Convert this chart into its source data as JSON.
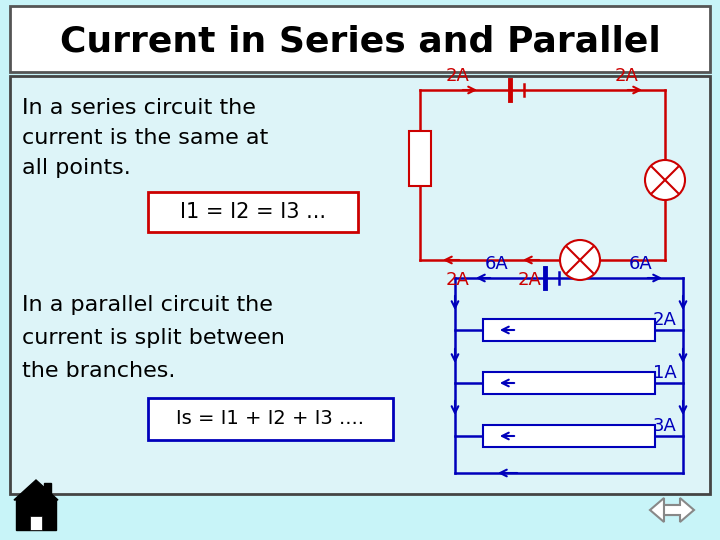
{
  "title": "Current in Series and Parallel",
  "bg_outer": "#c8f4f8",
  "bg_inner": "#ddf4f8",
  "title_bg": "#ffffff",
  "border_color": "#333333",
  "red_color": "#cc0000",
  "blue_color": "#0000bb",
  "text_color": "#000000",
  "series_text1": "In a series circuit the",
  "series_text2": "current is the same at",
  "series_text3": "all points.",
  "series_formula": "I1 = I2 = I3 ...",
  "parallel_text1": "In a parallel circuit the",
  "parallel_text2": "current is split between",
  "parallel_text3": "the branches.",
  "parallel_formula": "Is = I1 + I2 + I3 ...."
}
